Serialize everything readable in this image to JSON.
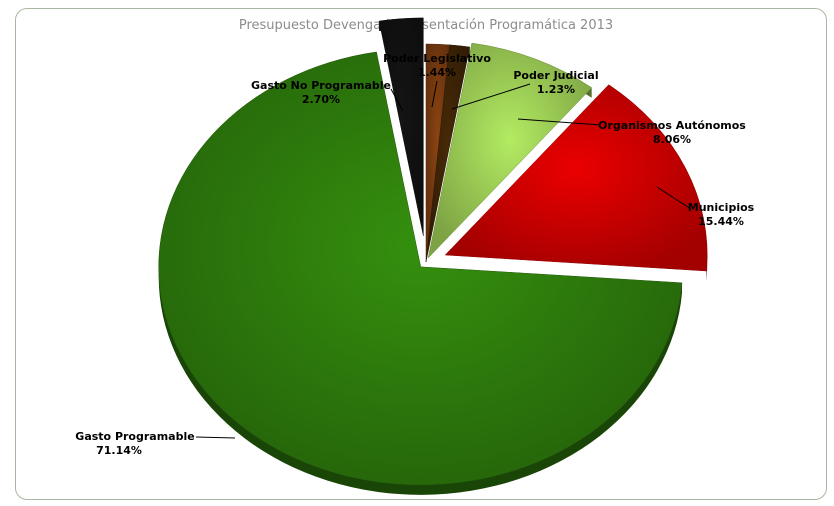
{
  "chart_data": {
    "type": "pie",
    "title": "Presupuesto Devengado Presentación Programática 2013",
    "legend": "none",
    "slices": [
      {
        "name": "Poder Legislativo",
        "label": "1.44%",
        "value": 1.44,
        "color": "#7a3b10",
        "explode": 0
      },
      {
        "name": "Poder Judicial",
        "label": "1.23%",
        "value": 1.23,
        "color": "#3d2406",
        "explode": 0
      },
      {
        "name": "Organismos Autónomos",
        "label": "8.06%",
        "value": 8.06,
        "color": "#9ccc55",
        "explode": 0.02
      },
      {
        "name": "Municipios",
        "label": "15.44%",
        "value": 15.44,
        "color": "#cc0000",
        "explode": 0.08
      },
      {
        "name": "Gasto Programable",
        "label": "71.14%",
        "value": 71.14,
        "color": "#2e7d0c",
        "explode": 0.03
      },
      {
        "name": "Gasto No Programable",
        "label": "2.70%",
        "value": 2.7,
        "color": "#111111",
        "explode": 0.12
      }
    ]
  }
}
